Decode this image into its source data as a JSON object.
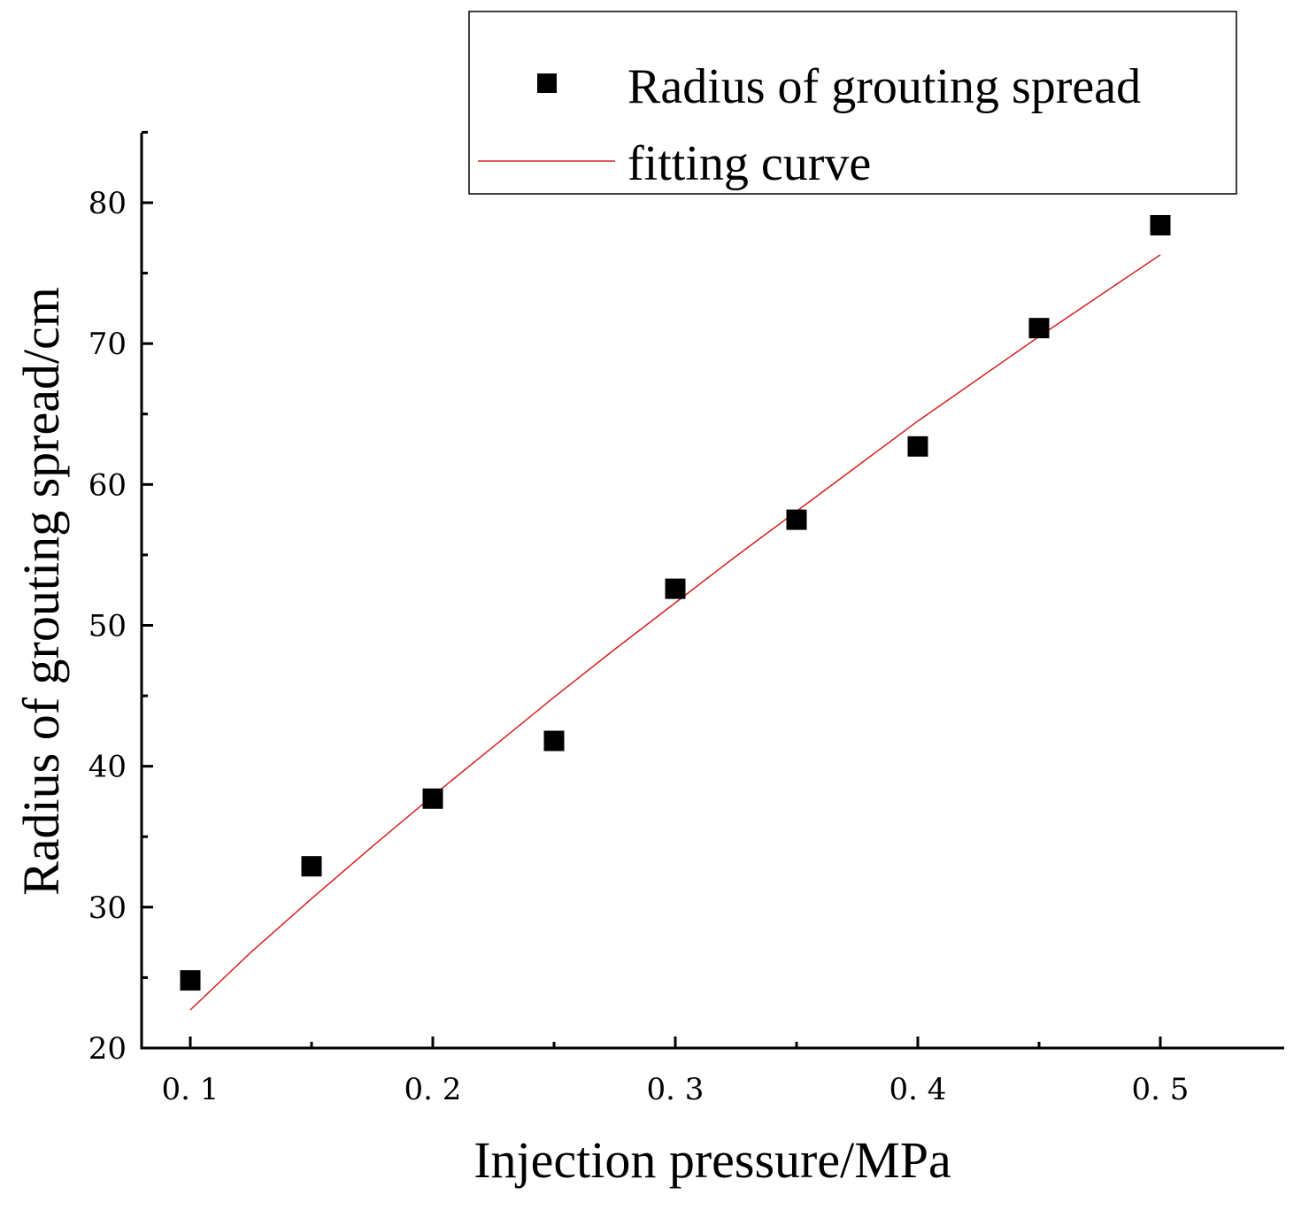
{
  "chart_data": {
    "type": "scatter",
    "title": "",
    "xlabel": "Injection pressure/MPa",
    "ylabel": "Radius of grouting spread/cm",
    "xlim": [
      0.08,
      0.55
    ],
    "ylim": [
      20,
      85
    ],
    "xticks": [
      0.1,
      0.2,
      0.3,
      0.4,
      0.5
    ],
    "xtick_labels": [
      "0. 1",
      "0. 2",
      "0. 3",
      "0. 4",
      "0. 5"
    ],
    "xminor_ticks": [
      0.15,
      0.25,
      0.35,
      0.45
    ],
    "yticks": [
      20,
      30,
      40,
      50,
      60,
      70,
      80
    ],
    "ytick_labels": [
      "20",
      "30",
      "40",
      "50",
      "60",
      "70",
      "80"
    ],
    "yminor_ticks": [
      25,
      35,
      45,
      55,
      65,
      75,
      85
    ],
    "grid": false,
    "legend_position": "top-right",
    "series": [
      {
        "name": "Radius of grouting spread",
        "kind": "scatter",
        "marker": "square",
        "color": "#000000",
        "x": [
          0.1,
          0.15,
          0.2,
          0.25,
          0.3,
          0.35,
          0.4,
          0.45,
          0.5
        ],
        "y": [
          24.8,
          32.9,
          37.7,
          41.8,
          52.6,
          57.5,
          62.7,
          71.1,
          78.4
        ]
      },
      {
        "name": "fitting curve",
        "kind": "line",
        "color": "#d42020",
        "x": [
          0.1,
          0.125,
          0.15,
          0.175,
          0.2,
          0.225,
          0.25,
          0.275,
          0.3,
          0.325,
          0.35,
          0.375,
          0.4,
          0.425,
          0.45,
          0.475,
          0.5
        ],
        "y": [
          22.7,
          26.8,
          30.6,
          34.3,
          37.9,
          41.4,
          44.9,
          48.3,
          51.6,
          54.9,
          58.1,
          61.3,
          64.5,
          67.5,
          70.5,
          73.4,
          76.3
        ]
      }
    ]
  }
}
